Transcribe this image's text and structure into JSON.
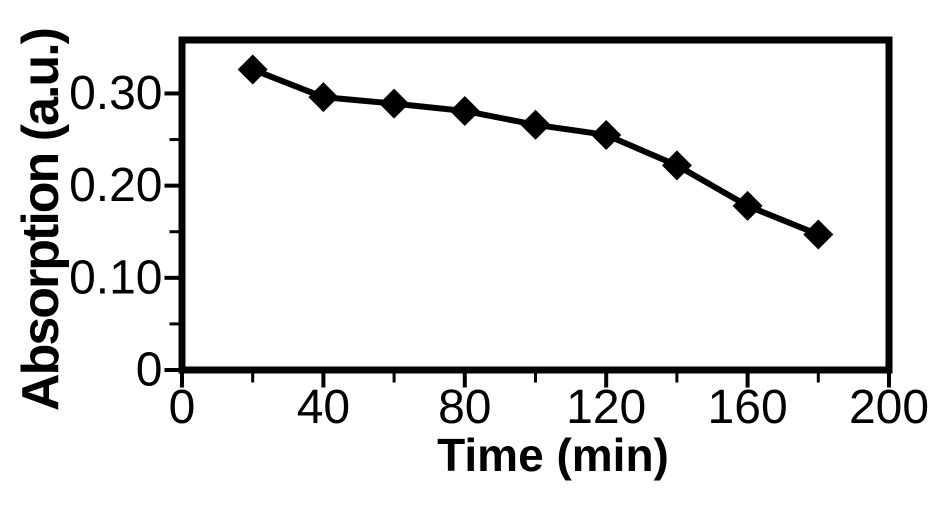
{
  "figure": {
    "background": "#ffffff",
    "ink": "#000000"
  },
  "chart_data": {
    "type": "line",
    "title": "",
    "xlabel": "Time (min)",
    "ylabel": "Absorption (a.u.)",
    "x": [
      20,
      40,
      60,
      80,
      100,
      120,
      140,
      160,
      180
    ],
    "series": [
      {
        "name": "absorption",
        "values": [
          0.326,
          0.296,
          0.289,
          0.281,
          0.266,
          0.255,
          0.222,
          0.178,
          0.147
        ],
        "color": "#000000",
        "marker": "diamond"
      }
    ],
    "xlim": [
      0,
      200
    ],
    "ylim": [
      0,
      0.358
    ],
    "x_ticks": {
      "major": [
        {
          "value": 0,
          "label": "0"
        },
        {
          "value": 40,
          "label": "40"
        },
        {
          "value": 80,
          "label": "80"
        },
        {
          "value": 120,
          "label": "120"
        },
        {
          "value": 160,
          "label": "160"
        },
        {
          "value": 200,
          "label": "200"
        }
      ],
      "minor": [
        20,
        60,
        100,
        140,
        180
      ]
    },
    "y_ticks": {
      "major": [
        {
          "value": 0,
          "label": "0"
        },
        {
          "value": 0.1,
          "label": "0.10"
        },
        {
          "value": 0.2,
          "label": "0.20"
        },
        {
          "value": 0.3,
          "label": "0.30"
        }
      ],
      "minor": [
        0.05,
        0.15,
        0.25
      ]
    },
    "grid": false,
    "legend": "none",
    "frame": "box"
  }
}
